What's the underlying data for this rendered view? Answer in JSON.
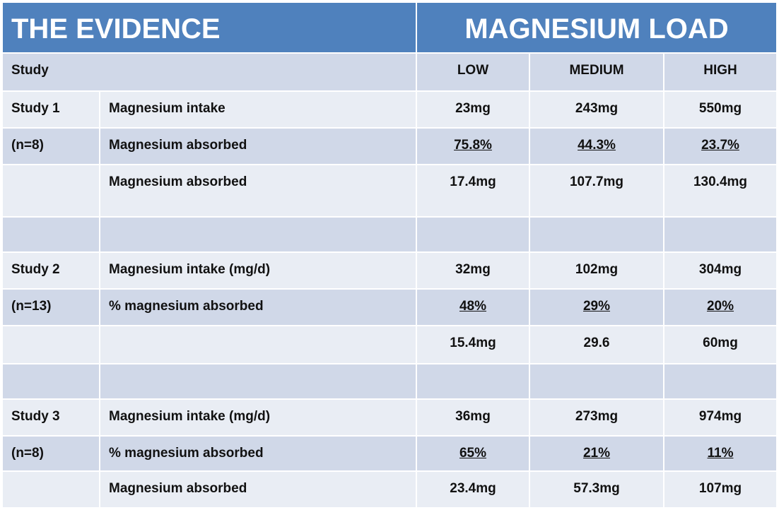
{
  "header": {
    "title_left": "THE EVIDENCE",
    "title_right": "MAGNESIUM LOAD"
  },
  "table": {
    "columns": [
      "Study",
      "LOW",
      "MEDIUM",
      "HIGH"
    ],
    "rows": [
      {
        "cells": [
          "Study 1",
          "Magnesium intake",
          "23mg",
          "243mg",
          "550mg"
        ]
      },
      {
        "cells": [
          "(n=8)",
          "Magnesium absorbed",
          "75.8%",
          "44.3%",
          "23.7%"
        ],
        "underline": true
      },
      {
        "cells": [
          null,
          "Magnesium absorbed",
          "17.4mg",
          "107.7mg",
          "130.4mg"
        ]
      },
      {
        "cells": [
          null,
          null,
          null,
          null,
          null
        ]
      },
      {
        "cells": [
          "Study 2",
          "Magnesium intake (mg/d)",
          "32mg",
          "102mg",
          "304mg"
        ]
      },
      {
        "cells": [
          "(n=13)",
          "% magnesium absorbed",
          "48%",
          "29%",
          "20%"
        ],
        "underline": true
      },
      {
        "cells": [
          null,
          null,
          "15.4mg",
          "29.6",
          "60mg"
        ]
      },
      {
        "cells": [
          null,
          null,
          null,
          null,
          null
        ]
      },
      {
        "cells": [
          "Study 3",
          "Magnesium intake (mg/d)",
          "36mg",
          "273mg",
          "974mg"
        ]
      },
      {
        "cells": [
          "(n=8)",
          "% magnesium absorbed",
          "65%",
          "21%",
          "11%"
        ],
        "underline": true
      },
      {
        "cells": [
          null,
          "Magnesium absorbed",
          "23.4mg",
          "57.3mg",
          "107mg"
        ]
      }
    ]
  }
}
